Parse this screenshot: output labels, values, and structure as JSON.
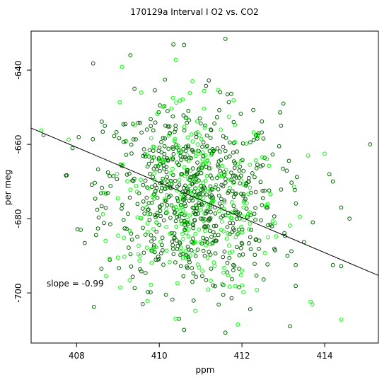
{
  "chart_data": {
    "type": "scatter",
    "title": "170129a   Interval I O2 vs. CO2",
    "xlabel": "ppm",
    "ylabel": "per meg",
    "xlim": [
      406.9,
      415.3
    ],
    "ylim": [
      -713.5,
      -629.5
    ],
    "x_ticks": [
      408,
      410,
      412,
      414
    ],
    "y_ticks": [
      -640,
      -660,
      -680,
      -700
    ],
    "x_tick_labels": [
      "408",
      "410",
      "412",
      "414"
    ],
    "y_tick_labels": [
      "-640",
      "-660",
      "-680",
      "-700"
    ],
    "annotation": "slope =  -0.99",
    "grid": false,
    "legend": "none",
    "point_colors": [
      "#006400",
      "#00ff00"
    ],
    "point_count_estimate": 900,
    "center": {
      "x": 410.8,
      "y": -674.5
    },
    "spread": {
      "x": 1.05,
      "y": 12.5
    },
    "fit_line": {
      "slope": -0.99,
      "x": [
        406.9,
        415.3
      ],
      "y": [
        -655.6,
        -695.3
      ]
    },
    "series": [
      {
        "values": [
          [
            407.2,
            -657.5
          ],
          [
            408.4,
            -638.2
          ],
          [
            409.1,
            -639.1
          ],
          [
            409.3,
            -636.0
          ],
          [
            410.4,
            -637.2
          ],
          [
            410.6,
            -633.2
          ],
          [
            411.6,
            -631.6
          ],
          [
            410.8,
            -643.0
          ],
          [
            411.2,
            -642.8
          ],
          [
            415.1,
            -660.0
          ],
          [
            414.2,
            -670.0
          ],
          [
            414.0,
            -662.5
          ],
          [
            413.6,
            -663.0
          ],
          [
            414.6,
            -680.0
          ],
          [
            414.4,
            -677.0
          ],
          [
            414.2,
            -692.5
          ],
          [
            414.4,
            -692.8
          ],
          [
            414.4,
            -707.2
          ],
          [
            413.7,
            -703.0
          ],
          [
            413.3,
            -692.5
          ],
          [
            413.1,
            -690.0
          ],
          [
            411.6,
            -710.7
          ],
          [
            411.9,
            -708.5
          ],
          [
            412.2,
            -704.4
          ],
          [
            409.6,
            -703.0
          ],
          [
            409.8,
            -697.8
          ],
          [
            408.6,
            -693.5
          ],
          [
            409.0,
            -690.5
          ],
          [
            407.9,
            -661.0
          ],
          [
            408.1,
            -683.0
          ],
          [
            409.4,
            -645.0
          ],
          [
            410.2,
            -651.0
          ],
          [
            410.5,
            -648.2
          ],
          [
            411.8,
            -654.0
          ],
          [
            412.4,
            -657.0
          ],
          [
            412.9,
            -660.5
          ],
          [
            413.0,
            -649.0
          ],
          [
            412.6,
            -664.0
          ],
          [
            413.2,
            -670.3
          ],
          [
            413.4,
            -679.5
          ],
          [
            413.5,
            -686.3
          ],
          [
            412.8,
            -688.5
          ],
          [
            412.0,
            -694.0
          ],
          [
            411.3,
            -698.0
          ],
          [
            410.8,
            -697.0
          ],
          [
            410.1,
            -692.4
          ],
          [
            409.5,
            -687.3
          ],
          [
            408.7,
            -686.0
          ],
          [
            408.5,
            -677.6
          ],
          [
            408.8,
            -668.5
          ],
          [
            409.2,
            -662.8
          ],
          [
            409.7,
            -656.0
          ],
          [
            410.0,
            -665.4
          ],
          [
            410.3,
            -670.2
          ],
          [
            410.6,
            -674.8
          ],
          [
            410.9,
            -678.0
          ],
          [
            411.2,
            -680.5
          ],
          [
            411.5,
            -683.0
          ],
          [
            411.8,
            -676.6
          ],
          [
            411.4,
            -669.0
          ],
          [
            411.0,
            -666.0
          ],
          [
            410.7,
            -660.4
          ],
          [
            411.1,
            -655.5
          ],
          [
            411.6,
            -661.8
          ],
          [
            412.1,
            -670.8
          ],
          [
            412.3,
            -678.7
          ],
          [
            412.2,
            -685.0
          ],
          [
            411.7,
            -689.2
          ],
          [
            411.1,
            -690.0
          ],
          [
            410.5,
            -686.7
          ],
          [
            410.0,
            -681.7
          ],
          [
            409.6,
            -677.3
          ],
          [
            409.3,
            -672.2
          ],
          [
            409.9,
            -671.0
          ],
          [
            410.4,
            -676.9
          ],
          [
            411.3,
            -674.3
          ],
          [
            412.5,
            -672.5
          ],
          [
            412.8,
            -681.2
          ],
          [
            410.3,
            -683.9
          ],
          [
            409.8,
            -684.5
          ]
        ]
      }
    ]
  }
}
